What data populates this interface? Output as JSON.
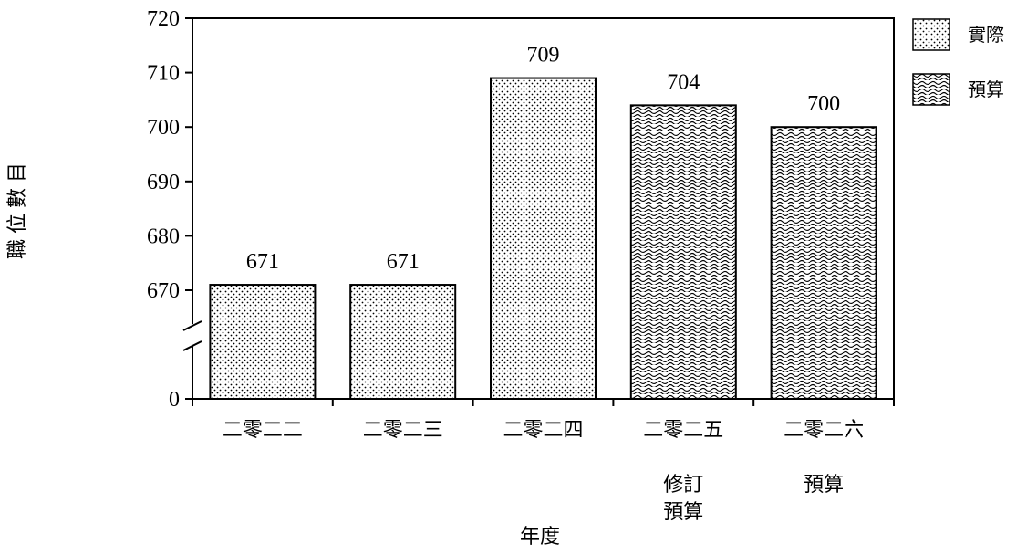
{
  "chart_data": {
    "type": "bar",
    "categories": [
      "二零二二",
      "二零二三",
      "二零二四",
      "二零二五",
      "二零二六"
    ],
    "category_sublabels": [
      "",
      "",
      "",
      "修訂\n預算",
      "預算"
    ],
    "values": [
      671,
      671,
      709,
      704,
      700
    ],
    "series_type": [
      "實際",
      "實際",
      "實際",
      "預算",
      "預算"
    ],
    "data_labels": [
      "671",
      "671",
      "709",
      "704",
      "700"
    ],
    "title": "",
    "xlabel": "年度",
    "ylabel": "職位數目",
    "ylim": [
      670,
      720
    ],
    "yticks": [
      0,
      670,
      680,
      690,
      700,
      710,
      720
    ],
    "axis_break": true,
    "legend": [
      {
        "name": "實際",
        "pattern": "dots"
      },
      {
        "name": "預算",
        "pattern": "waves"
      }
    ],
    "legend_position": "top-right",
    "grid": false,
    "colors": {
      "bar_fill": "#ffffff",
      "pattern": "#000000",
      "axis": "#000000"
    }
  }
}
